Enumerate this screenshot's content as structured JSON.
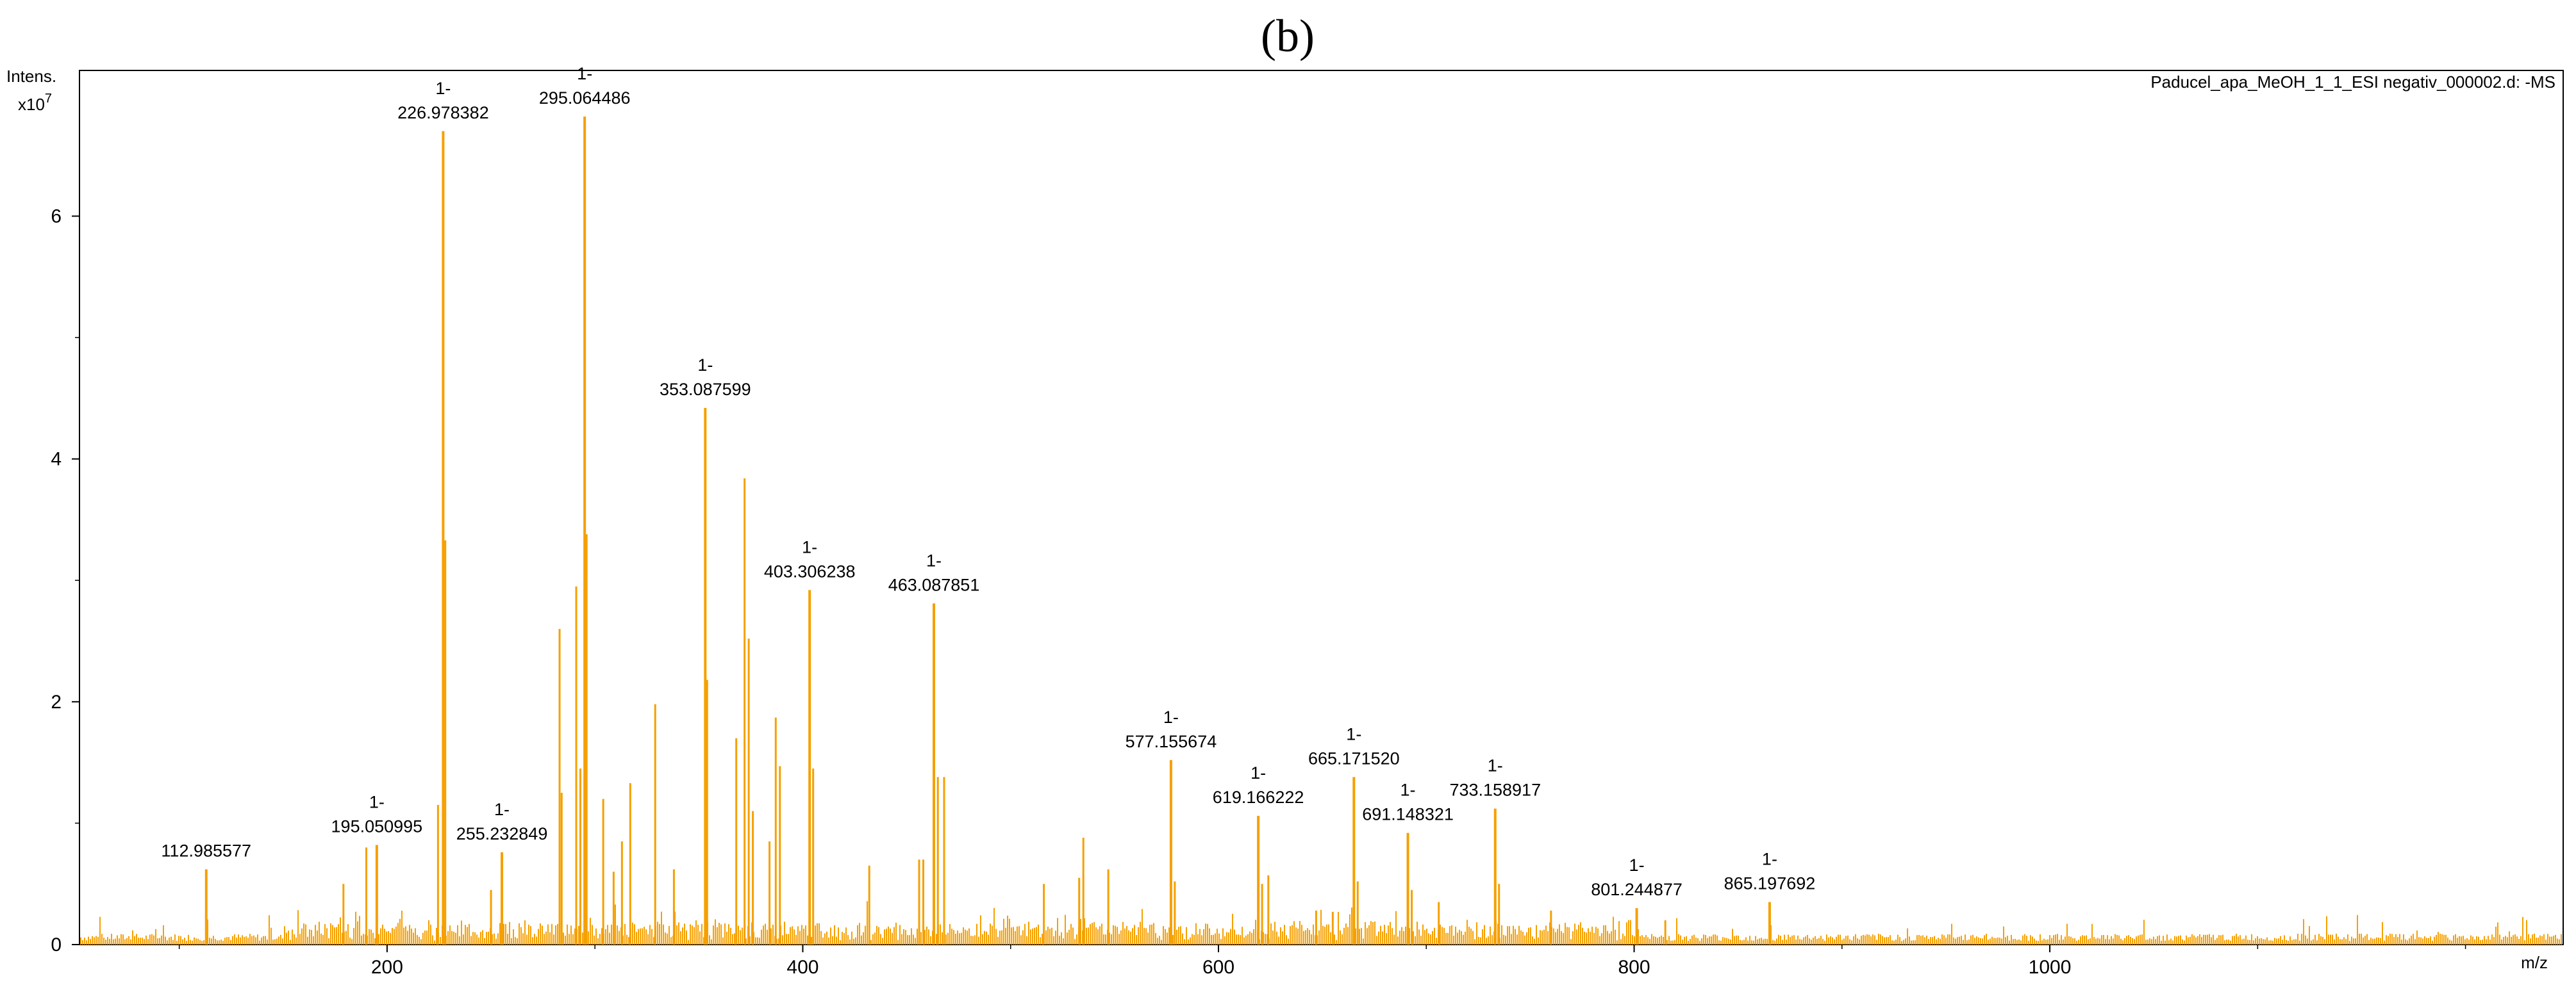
{
  "panel_label": "(b)",
  "chart_data": {
    "type": "bar",
    "title": "Paducel_apa_MeOH_1_1_ESI negativ_000002.d: -MS",
    "ylabel": "Intens.",
    "yunit": "x10",
    "yexp": "7",
    "xlabel": "m/z",
    "xlim": [
      52,
      1247
    ],
    "ylim": [
      0,
      7.2
    ],
    "xticks": [
      200,
      400,
      600,
      800,
      1000
    ],
    "yticks": [
      2,
      4,
      6
    ],
    "color": "#f5a000",
    "labeled_peaks": [
      {
        "mz": 112.985577,
        "intensity": 0.62,
        "prefix": "",
        "text": "112.985577"
      },
      {
        "mz": 195.050995,
        "intensity": 0.82,
        "prefix": "1-",
        "text": "195.050995"
      },
      {
        "mz": 226.978382,
        "intensity": 6.7,
        "prefix": "1-",
        "text": "226.978382"
      },
      {
        "mz": 255.232849,
        "intensity": 0.76,
        "prefix": "1-",
        "text": "255.232849"
      },
      {
        "mz": 295.064486,
        "intensity": 6.82,
        "prefix": "1-",
        "text": "295.064486"
      },
      {
        "mz": 353.087599,
        "intensity": 4.42,
        "prefix": "1-",
        "text": "353.087599"
      },
      {
        "mz": 403.306238,
        "intensity": 2.92,
        "prefix": "1-",
        "text": "403.306238"
      },
      {
        "mz": 463.087851,
        "intensity": 2.81,
        "prefix": "1-",
        "text": "463.087851"
      },
      {
        "mz": 577.155674,
        "intensity": 1.52,
        "prefix": "1-",
        "text": "577.155674"
      },
      {
        "mz": 619.166222,
        "intensity": 1.06,
        "prefix": "1-",
        "text": "619.166222"
      },
      {
        "mz": 665.17152,
        "intensity": 1.38,
        "prefix": "1-",
        "text": "665.171520"
      },
      {
        "mz": 691.148321,
        "intensity": 0.92,
        "prefix": "1-",
        "text": "691.148321"
      },
      {
        "mz": 733.158917,
        "intensity": 1.12,
        "prefix": "1-",
        "text": "733.158917"
      },
      {
        "mz": 801.244877,
        "intensity": 0.3,
        "prefix": "1-",
        "text": "801.244877"
      },
      {
        "mz": 865.197692,
        "intensity": 0.35,
        "prefix": "1-",
        "text": "865.197692"
      }
    ],
    "other_peaks": [
      [
        179.0,
        0.5
      ],
      [
        190.0,
        0.8
      ],
      [
        228.0,
        3.33
      ],
      [
        224.5,
        1.15
      ],
      [
        250.0,
        0.45
      ],
      [
        283.0,
        2.6
      ],
      [
        284.0,
        1.25
      ],
      [
        291.0,
        2.95
      ],
      [
        293.0,
        1.45
      ],
      [
        296.0,
        3.38
      ],
      [
        304.0,
        1.2
      ],
      [
        309.0,
        0.6
      ],
      [
        313.0,
        0.85
      ],
      [
        317.0,
        1.33
      ],
      [
        329.0,
        1.98
      ],
      [
        338.0,
        0.62
      ],
      [
        354.0,
        2.18
      ],
      [
        368.0,
        1.7
      ],
      [
        372.0,
        3.84
      ],
      [
        374.0,
        2.52
      ],
      [
        376.0,
        1.1
      ],
      [
        384.0,
        0.85
      ],
      [
        387.0,
        1.87
      ],
      [
        389.0,
        1.47
      ],
      [
        405.0,
        1.45
      ],
      [
        432.0,
        0.65
      ],
      [
        456.0,
        0.7
      ],
      [
        458.0,
        0.7
      ],
      [
        465.0,
        1.38
      ],
      [
        468.0,
        1.38
      ],
      [
        516.0,
        0.5
      ],
      [
        533.0,
        0.55
      ],
      [
        535.0,
        0.88
      ],
      [
        547.0,
        0.62
      ],
      [
        579.0,
        0.52
      ],
      [
        621.0,
        0.5
      ],
      [
        624.0,
        0.57
      ],
      [
        647.0,
        0.28
      ],
      [
        655.0,
        0.27
      ],
      [
        667.0,
        0.52
      ],
      [
        693.0,
        0.45
      ],
      [
        706.0,
        0.35
      ],
      [
        735.0,
        0.5
      ],
      [
        760.0,
        0.28
      ],
      [
        815.0,
        0.2
      ]
    ]
  }
}
